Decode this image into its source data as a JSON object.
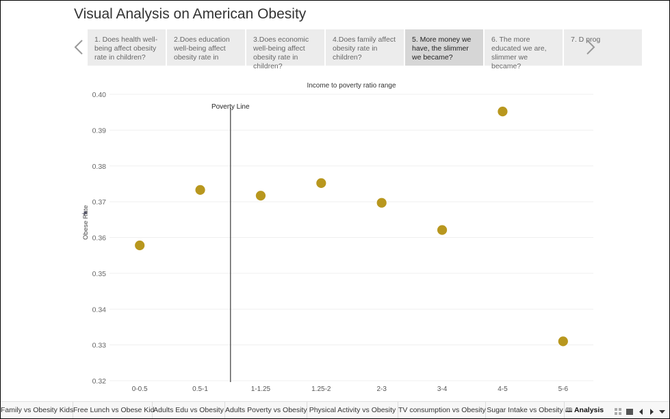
{
  "title": "Visual Analysis on American Obesity",
  "story_points": [
    {
      "label": "1. Does health well-being affect obesity rate in children?"
    },
    {
      "label": "2.Does education well-being affect obesity rate in"
    },
    {
      "label": "3.Does economic well-being affect obesity rate in children?"
    },
    {
      "label": "4.Does family affect obesity rate in children?"
    },
    {
      "label": "5. More money we have, the slimmer we became?"
    },
    {
      "label": "6. The more educated we are, slimmer we became?"
    },
    {
      "label": "7. D prog"
    }
  ],
  "active_story_point": 4,
  "sheet_tabs": [
    {
      "label": "Family vs Obesity Kids"
    },
    {
      "label": "Free Lunch vs Obese Kid"
    },
    {
      "label": "Adults  Edu vs Obesity"
    },
    {
      "label": "Adults Poverty vs Obesity"
    },
    {
      "label": "Physical Activity vs Obesity"
    },
    {
      "label": "TV consumption vs Obesity"
    },
    {
      "label": "Sugar Intake vs Obesity"
    },
    {
      "label": "Analysis"
    }
  ],
  "icons": {
    "prev": "chevron-left-icon",
    "next": "chevron-right-icon",
    "pin": "pin-icon",
    "story": "book-icon"
  },
  "colors": {
    "marker": "#B8971E",
    "reference_line": "#555555",
    "active_story_bg": "#d6d6d6",
    "story_bg": "#ececec"
  },
  "chart_data": {
    "type": "scatter",
    "title": "Income to poverty ratio range",
    "xlabel": "",
    "ylabel": "Obese Rate",
    "categories": [
      "0-0.5",
      "0.5-1",
      "1-1.25",
      "1.25-2",
      "2-3",
      "3-4",
      "4-5",
      "5-6"
    ],
    "values": [
      0.3578,
      0.3733,
      0.3717,
      0.3752,
      0.3697,
      0.3621,
      0.3952,
      0.331
    ],
    "ylim": [
      0.32,
      0.4
    ],
    "yticks": [
      "0.32",
      "0.33",
      "0.34",
      "0.35",
      "0.36",
      "0.37",
      "0.38",
      "0.39",
      "0.40"
    ],
    "grid": true,
    "annotation": {
      "label": "Poverty Line",
      "between": [
        "0.5-1",
        "1-1.25"
      ]
    }
  }
}
